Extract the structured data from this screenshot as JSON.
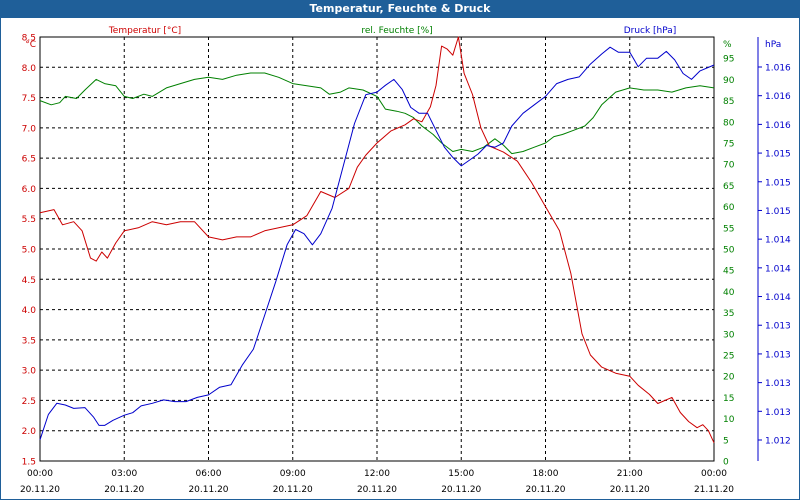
{
  "window": {
    "title": "Temperatur, Feuchte & Druck"
  },
  "chart_data": {
    "type": "line",
    "title": "Temperatur, Feuchte & Druck",
    "grid": true,
    "x_range": [
      0,
      24
    ],
    "x_ticks": [
      {
        "time": "00:00",
        "date": "20.11.20"
      },
      {
        "time": "03:00",
        "date": "20.11.20"
      },
      {
        "time": "06:00",
        "date": "20.11.20"
      },
      {
        "time": "09:00",
        "date": "20.11.20"
      },
      {
        "time": "12:00",
        "date": "20.11.20"
      },
      {
        "time": "15:00",
        "date": "20.11.20"
      },
      {
        "time": "18:00",
        "date": "20.11.20"
      },
      {
        "time": "21:00",
        "date": "20.11.20"
      },
      {
        "time": "00:00",
        "date": "21.11.20"
      }
    ],
    "axes": {
      "temperature": {
        "label": "Temperatur [°C]",
        "unit": "°C",
        "color": "#cc0000",
        "range": [
          1.5,
          8.5
        ],
        "ticks": [
          "1.5",
          "2.0",
          "2.5",
          "3.0",
          "3.5",
          "4.0",
          "4.5",
          "5.0",
          "5.5",
          "6.0",
          "6.5",
          "7.0",
          "7.5",
          "8.0",
          "8.5"
        ]
      },
      "humidity": {
        "label": "rel. Feuchte [%]",
        "unit": "%",
        "color": "#008000",
        "range": [
          0,
          100
        ],
        "ticks": [
          "0",
          "5",
          "10",
          "15",
          "20",
          "25",
          "30",
          "35",
          "40",
          "45",
          "50",
          "55",
          "60",
          "65",
          "70",
          "75",
          "80",
          "85",
          "90",
          "95"
        ]
      },
      "pressure": {
        "label": "Druck [hPa]",
        "unit": "hPa",
        "color": "#0000cc",
        "range": [
          1.0115,
          1.0165
        ],
        "ticks": [
          "1.012",
          "1.013",
          "1.013",
          "1.013",
          "1.013",
          "1.014",
          "1.014",
          "1.014",
          "1.015",
          "1.015",
          "1.015",
          "1.016",
          "1.016",
          "1.016"
        ]
      }
    },
    "series": [
      {
        "axis": "temperature",
        "color": "#cc0000",
        "points": [
          [
            0.0,
            5.6
          ],
          [
            0.5,
            5.65
          ],
          [
            0.8,
            5.4
          ],
          [
            1.2,
            5.45
          ],
          [
            1.5,
            5.3
          ],
          [
            1.7,
            5.0
          ],
          [
            1.8,
            4.85
          ],
          [
            2.0,
            4.8
          ],
          [
            2.2,
            4.95
          ],
          [
            2.4,
            4.85
          ],
          [
            2.7,
            5.1
          ],
          [
            3.0,
            5.3
          ],
          [
            3.5,
            5.35
          ],
          [
            4.0,
            5.45
          ],
          [
            4.5,
            5.4
          ],
          [
            5.0,
            5.45
          ],
          [
            5.5,
            5.45
          ],
          [
            6.0,
            5.2
          ],
          [
            6.5,
            5.15
          ],
          [
            7.0,
            5.2
          ],
          [
            7.5,
            5.2
          ],
          [
            8.0,
            5.3
          ],
          [
            8.5,
            5.35
          ],
          [
            9.0,
            5.4
          ],
          [
            9.5,
            5.55
          ],
          [
            10.0,
            5.95
          ],
          [
            10.5,
            5.85
          ],
          [
            11.0,
            6.0
          ],
          [
            11.3,
            6.35
          ],
          [
            11.6,
            6.55
          ],
          [
            12.0,
            6.75
          ],
          [
            12.5,
            6.95
          ],
          [
            13.0,
            7.05
          ],
          [
            13.3,
            7.15
          ],
          [
            13.6,
            7.1
          ],
          [
            13.9,
            7.35
          ],
          [
            14.1,
            7.7
          ],
          [
            14.3,
            8.35
          ],
          [
            14.5,
            8.3
          ],
          [
            14.7,
            8.2
          ],
          [
            14.9,
            8.5
          ],
          [
            15.1,
            7.9
          ],
          [
            15.4,
            7.55
          ],
          [
            15.7,
            7.0
          ],
          [
            16.0,
            6.7
          ],
          [
            16.5,
            6.6
          ],
          [
            17.0,
            6.45
          ],
          [
            17.5,
            6.1
          ],
          [
            18.0,
            5.7
          ],
          [
            18.5,
            5.3
          ],
          [
            18.9,
            4.6
          ],
          [
            19.1,
            4.1
          ],
          [
            19.3,
            3.6
          ],
          [
            19.6,
            3.25
          ],
          [
            20.0,
            3.05
          ],
          [
            20.5,
            2.95
          ],
          [
            21.0,
            2.9
          ],
          [
            21.3,
            2.75
          ],
          [
            21.7,
            2.6
          ],
          [
            22.0,
            2.45
          ],
          [
            22.5,
            2.55
          ],
          [
            22.8,
            2.3
          ],
          [
            23.1,
            2.15
          ],
          [
            23.4,
            2.05
          ],
          [
            23.6,
            2.1
          ],
          [
            23.8,
            2.0
          ],
          [
            24.0,
            1.8
          ]
        ]
      },
      {
        "axis": "humidity",
        "color": "#008000",
        "points": [
          [
            0.0,
            85
          ],
          [
            0.4,
            84
          ],
          [
            0.7,
            84.5
          ],
          [
            0.9,
            86
          ],
          [
            1.3,
            85.5
          ],
          [
            1.6,
            87.5
          ],
          [
            2.0,
            90
          ],
          [
            2.3,
            89
          ],
          [
            2.7,
            88.5
          ],
          [
            3.0,
            86
          ],
          [
            3.3,
            85.5
          ],
          [
            3.7,
            86.5
          ],
          [
            4.0,
            86
          ],
          [
            4.5,
            88
          ],
          [
            5.0,
            89
          ],
          [
            5.5,
            90
          ],
          [
            6.0,
            90.5
          ],
          [
            6.5,
            90
          ],
          [
            7.0,
            91
          ],
          [
            7.5,
            91.5
          ],
          [
            8.0,
            91.5
          ],
          [
            8.5,
            90.5
          ],
          [
            9.0,
            89
          ],
          [
            9.5,
            88.5
          ],
          [
            10.0,
            88
          ],
          [
            10.3,
            86.5
          ],
          [
            10.7,
            87
          ],
          [
            11.0,
            88
          ],
          [
            11.5,
            87.5
          ],
          [
            12.0,
            86
          ],
          [
            12.3,
            83
          ],
          [
            12.7,
            82.5
          ],
          [
            13.0,
            82
          ],
          [
            13.3,
            81
          ],
          [
            13.6,
            79
          ],
          [
            14.0,
            77
          ],
          [
            14.3,
            75
          ],
          [
            14.7,
            73
          ],
          [
            15.0,
            73.5
          ],
          [
            15.4,
            73
          ],
          [
            15.8,
            74
          ],
          [
            16.2,
            76
          ],
          [
            16.5,
            74.5
          ],
          [
            16.8,
            72.5
          ],
          [
            17.2,
            73
          ],
          [
            17.6,
            74
          ],
          [
            18.0,
            75
          ],
          [
            18.3,
            76.5
          ],
          [
            18.6,
            77
          ],
          [
            19.0,
            78
          ],
          [
            19.4,
            79
          ],
          [
            19.7,
            81
          ],
          [
            20.0,
            84
          ],
          [
            20.5,
            87
          ],
          [
            21.0,
            88
          ],
          [
            21.5,
            87.5
          ],
          [
            22.0,
            87.5
          ],
          [
            22.5,
            87
          ],
          [
            23.0,
            88
          ],
          [
            23.5,
            88.5
          ],
          [
            24.0,
            88
          ]
        ]
      },
      {
        "axis": "pressure",
        "color": "#0000cc",
        "points": [
          [
            0.0,
            1.01175
          ],
          [
            0.3,
            1.01205
          ],
          [
            0.6,
            1.01218
          ],
          [
            0.9,
            1.01216
          ],
          [
            1.2,
            1.01212
          ],
          [
            1.6,
            1.01213
          ],
          [
            1.9,
            1.01202
          ],
          [
            2.1,
            1.01192
          ],
          [
            2.3,
            1.01192
          ],
          [
            2.6,
            1.01198
          ],
          [
            3.0,
            1.01204
          ],
          [
            3.3,
            1.01207
          ],
          [
            3.6,
            1.01215
          ],
          [
            4.0,
            1.01218
          ],
          [
            4.4,
            1.01222
          ],
          [
            4.8,
            1.0122
          ],
          [
            5.2,
            1.0122
          ],
          [
            5.6,
            1.01225
          ],
          [
            6.0,
            1.01228
          ],
          [
            6.4,
            1.01237
          ],
          [
            6.8,
            1.0124
          ],
          [
            7.2,
            1.01263
          ],
          [
            7.6,
            1.01282
          ],
          [
            8.0,
            1.01322
          ],
          [
            8.4,
            1.01362
          ],
          [
            8.8,
            1.01405
          ],
          [
            9.1,
            1.01423
          ],
          [
            9.4,
            1.01418
          ],
          [
            9.7,
            1.01405
          ],
          [
            10.0,
            1.01418
          ],
          [
            10.4,
            1.01448
          ],
          [
            10.8,
            1.01498
          ],
          [
            11.2,
            1.01548
          ],
          [
            11.6,
            1.01582
          ],
          [
            12.0,
            1.01585
          ],
          [
            12.3,
            1.01593
          ],
          [
            12.6,
            1.016
          ],
          [
            12.9,
            1.01588
          ],
          [
            13.2,
            1.01567
          ],
          [
            13.5,
            1.0156
          ],
          [
            13.8,
            1.0156
          ],
          [
            14.1,
            1.0154
          ],
          [
            14.4,
            1.0152
          ],
          [
            14.7,
            1.01508
          ],
          [
            15.0,
            1.01498
          ],
          [
            15.3,
            1.01505
          ],
          [
            15.6,
            1.01512
          ],
          [
            15.9,
            1.01522
          ],
          [
            16.2,
            1.0152
          ],
          [
            16.5,
            1.01525
          ],
          [
            16.8,
            1.01545
          ],
          [
            17.2,
            1.0156
          ],
          [
            17.6,
            1.0157
          ],
          [
            18.0,
            1.0158
          ],
          [
            18.4,
            1.01595
          ],
          [
            18.8,
            1.016
          ],
          [
            19.2,
            1.01603
          ],
          [
            19.6,
            1.01618
          ],
          [
            20.0,
            1.0163
          ],
          [
            20.3,
            1.01638
          ],
          [
            20.6,
            1.01632
          ],
          [
            21.0,
            1.01632
          ],
          [
            21.3,
            1.01615
          ],
          [
            21.6,
            1.01625
          ],
          [
            22.0,
            1.01625
          ],
          [
            22.3,
            1.01633
          ],
          [
            22.6,
            1.01623
          ],
          [
            22.9,
            1.01607
          ],
          [
            23.2,
            1.016
          ],
          [
            23.5,
            1.0161
          ],
          [
            24.0,
            1.01617
          ]
        ]
      }
    ]
  }
}
